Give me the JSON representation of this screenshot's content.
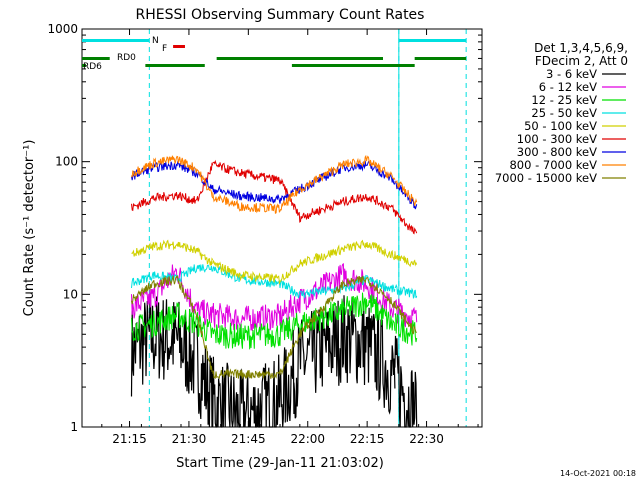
{
  "chart_data": {
    "type": "line",
    "title": "RHESSI Observing Summary Count Rates",
    "xlabel": "Start Time (29-Jan-11 21:03:02)",
    "ylabel": "Count Rate (s⁻¹ detector⁻¹)",
    "yscale": "log",
    "ylim": [
      1,
      1000
    ],
    "xlim_min": [
      0,
      101
    ],
    "x_tick_labels": [
      "21:15",
      "21:30",
      "21:45",
      "22:00",
      "22:15",
      "22:30"
    ],
    "x_tick_min": [
      12,
      27,
      42,
      57,
      72,
      87
    ],
    "y_tick_labels": [
      "1",
      "10",
      "100",
      "1000"
    ],
    "y_tick_values": [
      1,
      10,
      100,
      1000
    ],
    "footer": "14-Oct-2021 00:18",
    "legend": {
      "placement": "top-right",
      "header": [
        "Det 1,3,4,5,6,9,",
        "FDecim 2, Att 0"
      ]
    },
    "flags": {
      "night": {
        "label": "N",
        "color": "#00e0e0",
        "segments_min": [
          [
            0,
            17
          ],
          [
            80,
            97
          ]
        ]
      },
      "flare": {
        "label": "F",
        "color": "#e00000",
        "segments_min": [
          [
            23,
            26
          ]
        ]
      },
      "rd0": {
        "label": "RD0",
        "color": "#008000",
        "segments_min": [
          [
            0,
            7
          ],
          [
            34,
            76
          ],
          [
            84,
            97
          ]
        ]
      },
      "rd6": {
        "label": "RD6",
        "color": "#008000",
        "segments_min": [
          [
            0,
            1
          ],
          [
            16,
            31
          ],
          [
            53,
            84
          ]
        ]
      }
    },
    "day_intervals_min": [
      [
        12.5,
        33
      ],
      [
        33,
        53.5
      ],
      [
        53.5,
        79
      ],
      [
        79,
        84.5
      ]
    ],
    "series": [
      {
        "name": "3 - 6 keV",
        "color": "#000000",
        "values": [
          3.8,
          4.8,
          4.5,
          3.0,
          1.6,
          1.2,
          1.6,
          3.0,
          4.8,
          4.2,
          2.6,
          1.3
        ],
        "x": [
          12.5,
          18,
          24,
          29,
          33,
          40,
          50,
          55,
          66,
          72,
          78,
          84.5
        ]
      },
      {
        "name": "6 - 12 keV",
        "color": "#e000e0",
        "values": [
          8,
          9.5,
          15,
          7.5,
          7,
          6.5,
          6.8,
          9,
          14,
          12,
          8,
          6.5
        ],
        "x": [
          12.5,
          18,
          24,
          29,
          33,
          40,
          50,
          55,
          66,
          72,
          78,
          84.5
        ]
      },
      {
        "name": "12 - 25 keV",
        "color": "#00e000",
        "values": [
          5.5,
          6,
          7,
          6,
          5,
          4.8,
          5,
          6,
          7.5,
          9,
          6,
          5
        ],
        "x": [
          12.5,
          18,
          24,
          29,
          33,
          40,
          50,
          55,
          66,
          72,
          78,
          84.5
        ]
      },
      {
        "name": "25 - 50 keV",
        "color": "#00e0e0",
        "values": [
          12,
          14,
          13,
          16,
          16,
          13,
          12,
          10,
          11,
          13,
          11,
          10
        ],
        "x": [
          12.5,
          18,
          24,
          29,
          33,
          40,
          50,
          55,
          66,
          72,
          78,
          84.5
        ]
      },
      {
        "name": "50 - 100 keV",
        "color": "#d0d000",
        "values": [
          20,
          23,
          24,
          21,
          17,
          14,
          13,
          17,
          22,
          24,
          20,
          17
        ],
        "x": [
          12.5,
          18,
          24,
          29,
          33,
          40,
          50,
          55,
          66,
          72,
          78,
          84.5
        ]
      },
      {
        "name": "100 - 300 keV",
        "color": "#e00000",
        "values": [
          45,
          53,
          56,
          50,
          95,
          82,
          72,
          38,
          50,
          55,
          45,
          28
        ],
        "x": [
          12.5,
          18,
          24,
          29,
          33,
          40,
          50,
          55,
          66,
          72,
          78,
          84.5
        ]
      },
      {
        "name": "300 - 800 keV",
        "color": "#0000e0",
        "values": [
          78,
          90,
          95,
          82,
          62,
          55,
          52,
          62,
          90,
          95,
          75,
          45
        ],
        "x": [
          12.5,
          18,
          24,
          29,
          33,
          40,
          50,
          55,
          66,
          72,
          78,
          84.5
        ]
      },
      {
        "name": "800 - 7000 keV",
        "color": "#ff8000",
        "values": [
          82,
          97,
          105,
          88,
          55,
          46,
          44,
          62,
          95,
          102,
          78,
          48
        ],
        "x": [
          12.5,
          18,
          24,
          29,
          33,
          40,
          50,
          55,
          66,
          72,
          78,
          84.5
        ]
      },
      {
        "name": "7000 - 15000 keV",
        "color": "#808000",
        "values": [
          9,
          12,
          13,
          7,
          2.5,
          2.5,
          2.5,
          5,
          12,
          13,
          9,
          5
        ],
        "x": [
          12.5,
          18,
          24,
          29,
          33,
          40,
          50,
          55,
          66,
          72,
          78,
          84.5
        ]
      }
    ]
  }
}
